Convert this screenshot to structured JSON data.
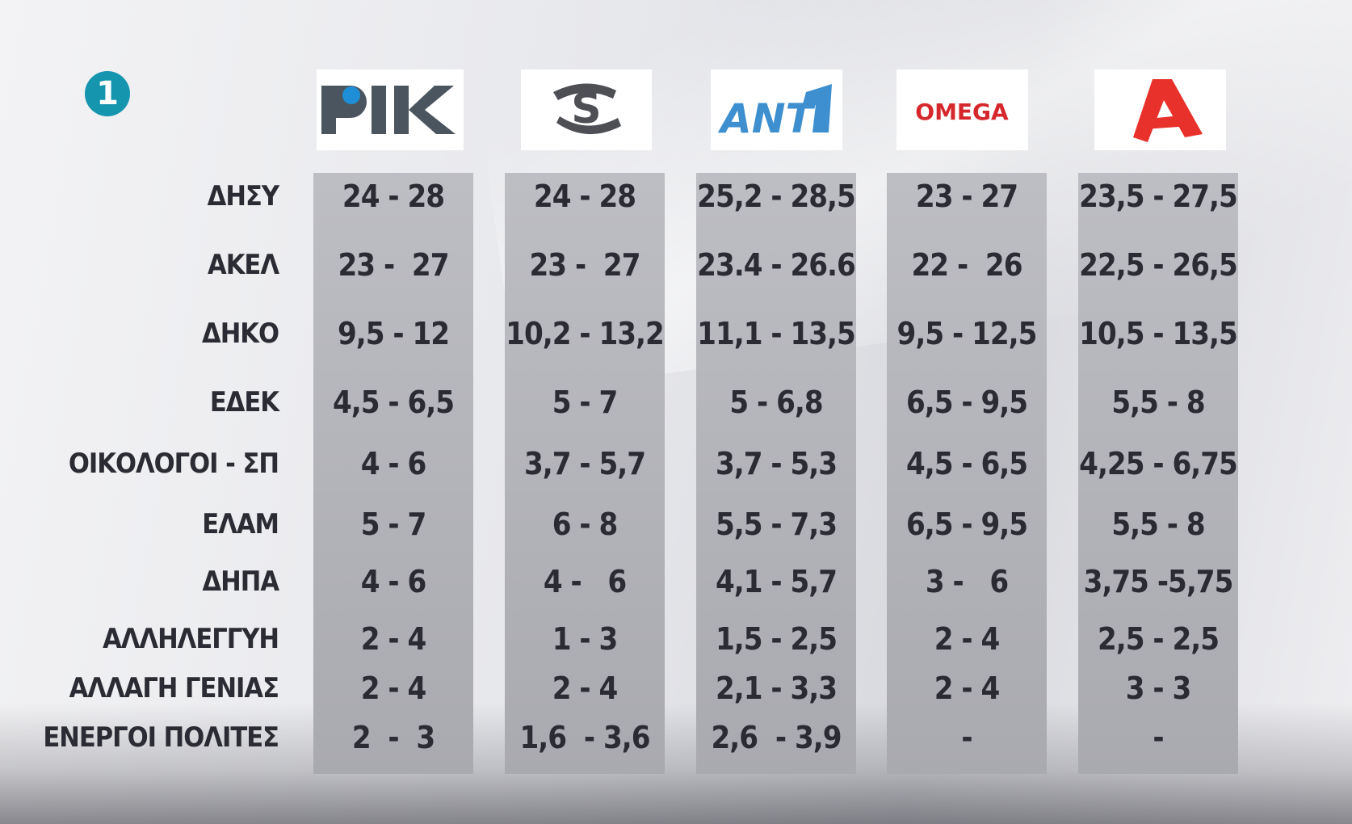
{
  "channel_badge": "1",
  "channels": [
    {
      "name": "ΡΙΚ",
      "logo_icon": "rik-logo-icon",
      "color": "#4b5560",
      "accent": "#1e8fd6"
    },
    {
      "name": "Sigma",
      "logo_icon": "sigma-logo-icon",
      "color": "#4d4f55"
    },
    {
      "name": "ANT1",
      "logo_icon": "ant1-logo-icon",
      "color": "#3e8fcf"
    },
    {
      "name": "OMEGA",
      "logo_icon": "omega-logo-icon",
      "color": "#d6272c"
    },
    {
      "name": "Alpha",
      "logo_icon": "alpha-logo-icon",
      "color": "#e8312b"
    }
  ],
  "parties": [
    "ΔΗΣΥ",
    "ΑΚΕΛ",
    "ΔΗΚΟ",
    "ΕΔΕΚ",
    "ΟΙΚΟΛΟΓΟΙ - ΣΠ",
    "ΕΛΑΜ",
    "ΔΗΠΑ",
    "ΑΛΛΗΛΕΓΓΥΗ",
    "ΑΛΛΑΓΗ ΓΕΝΙΑΣ",
    "ΕΝΕΡΓΟΙ ΠΟΛΙΤΕΣ"
  ],
  "rows": [
    [
      "24 - 28",
      "24 - 28",
      "25,2 - 28,5",
      "23 - 27",
      "23,5 - 27,5"
    ],
    [
      "23 -  27",
      "23 -  27",
      "23.4 - 26.6",
      "22 -  26",
      "22,5 - 26,5"
    ],
    [
      "9,5 - 12",
      "10,2 - 13,2",
      "11,1 - 13,5",
      "9,5 - 12,5",
      "10,5 - 13,5"
    ],
    [
      "4,5 - 6,5",
      "5 - 7",
      "5 - 6,8",
      "6,5 - 9,5",
      "5,5 - 8"
    ],
    [
      "4 - 6",
      "3,7 - 5,7",
      "3,7 - 5,3",
      "4,5 - 6,5",
      "4,25 - 6,75"
    ],
    [
      "5 - 7",
      "6 - 8",
      "5,5 - 7,3",
      "6,5 - 9,5",
      "5,5 - 8"
    ],
    [
      "4 - 6",
      "4 -   6",
      "4,1 - 5,7",
      "3 -   6",
      "3,75 -5,75"
    ],
    [
      "2 - 4",
      "1 - 3",
      "1,5 - 2,5",
      "2 - 4",
      "2,5 - 2,5"
    ],
    [
      "2 - 4",
      "2 - 4",
      "2,1 - 3,3",
      "2 - 4",
      "3 - 3"
    ],
    [
      "2  -  3",
      "1,6  - 3,6",
      "2,6  - 3,9",
      "-",
      "-"
    ]
  ]
}
